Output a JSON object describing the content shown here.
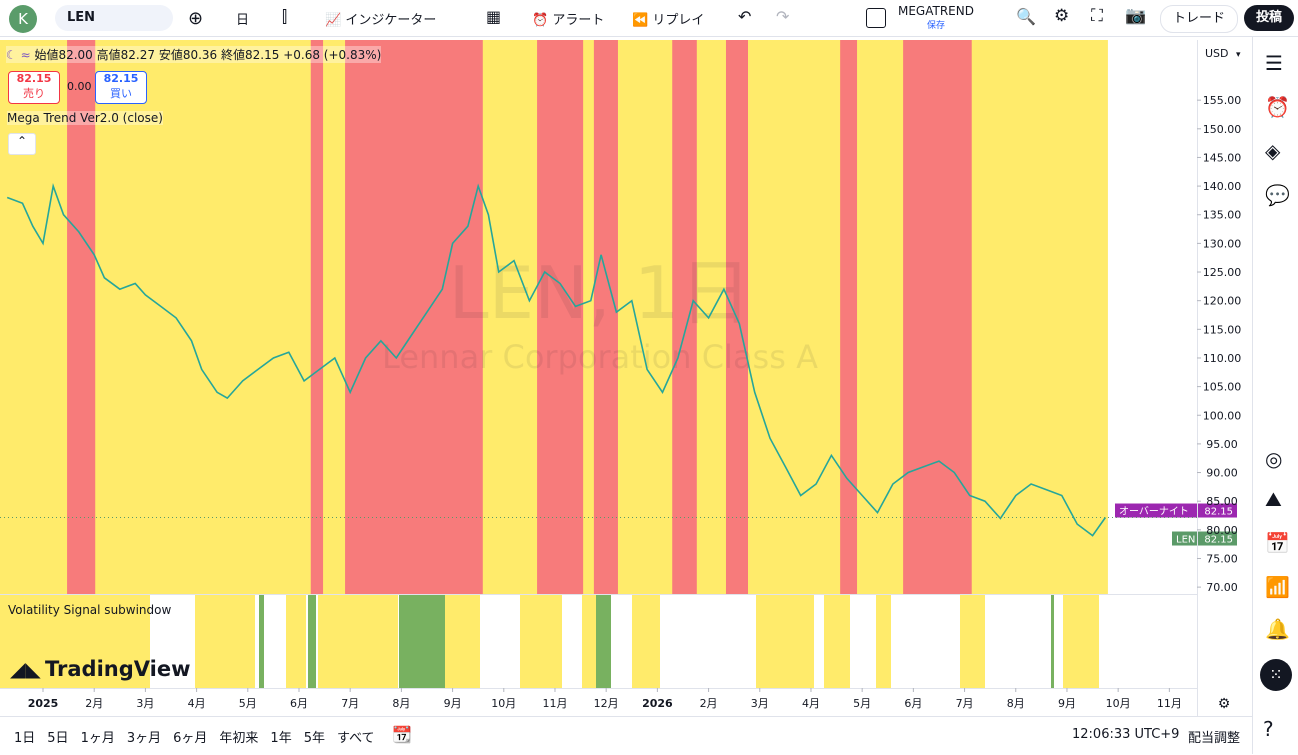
{
  "toolbar": {
    "avatar": "K",
    "symbol": "LEN",
    "interval": "日",
    "indicators": "インジケーター",
    "alert": "アラート",
    "replay": "リプレイ",
    "layout_name": "MEGATREND",
    "layout_status": "保存",
    "trade": "トレード",
    "publish": "投稿"
  },
  "legend": {
    "open": "始値82.00",
    "high": "高値82.27",
    "low": "安値80.36",
    "close": "終値82.15",
    "change": "+0.68 (+0.83%)",
    "sell_price": "82.15",
    "sell": "売り",
    "spread": "0.00",
    "buy_price": "82.15",
    "buy": "買い",
    "indicator": "Mega Trend Ver2.0 (close)",
    "subwindow": "Volatility Signal subwindow"
  },
  "watermark": {
    "symbol": "LEN, 1日",
    "name": "Lennar Corporation Class A"
  },
  "logo": "TradingView",
  "chart_data": {
    "type": "line",
    "currency": "USD",
    "color": "#26a69a",
    "x": [
      -0.7,
      -0.4,
      -0.2,
      0,
      0.2,
      0.4,
      0.7,
      1.0,
      1.2,
      1.5,
      1.8,
      2.0,
      2.3,
      2.6,
      2.9,
      3.1,
      3.4,
      3.6,
      3.9,
      4.2,
      4.5,
      4.8,
      5.1,
      5.4,
      5.7,
      6.0,
      6.3,
      6.6,
      6.9,
      7.2,
      7.5,
      7.8,
      8.0,
      8.3,
      8.5,
      8.7,
      8.9,
      9.2,
      9.5,
      9.8,
      10.1,
      10.4,
      10.7,
      10.9,
      11.2,
      11.5,
      11.8,
      12.1,
      12.4,
      12.7,
      13.0,
      13.3,
      13.6,
      13.9,
      14.2,
      14.5,
      14.8,
      15.1,
      15.4,
      15.7,
      16.0,
      16.3,
      16.6,
      16.9,
      17.2,
      17.5,
      17.8,
      18.1,
      18.4,
      18.7,
      19.0,
      19.3,
      19.6,
      19.9,
      20.2,
      20.5,
      20.75
    ],
    "values": [
      138,
      137,
      133,
      130,
      140,
      135,
      132,
      128,
      124,
      122,
      123,
      121,
      119,
      117,
      113,
      108,
      104,
      103,
      106,
      108,
      110,
      111,
      106,
      108,
      110,
      104,
      110,
      113,
      110,
      114,
      118,
      122,
      130,
      133,
      140,
      135,
      125,
      127,
      120,
      125,
      123,
      119,
      120,
      128,
      118,
      120,
      108,
      104,
      110,
      120,
      117,
      122,
      116,
      104,
      96,
      91,
      86,
      88,
      93,
      89,
      86,
      83,
      88,
      90,
      91,
      92,
      90,
      86,
      85,
      82,
      86,
      88,
      87,
      86,
      81,
      79,
      82.15
    ],
    "trend_zones": [
      [
        0.47,
        1.02
      ],
      [
        5.23,
        5.47
      ],
      [
        5.9,
        8.59
      ],
      [
        9.65,
        10.55
      ],
      [
        10.76,
        11.23
      ],
      [
        12.29,
        12.77
      ],
      [
        13.34,
        13.77
      ],
      [
        15.57,
        15.9
      ],
      [
        16.8,
        18.14
      ]
    ],
    "signal_end": 20.8,
    "xlim": [
      -0.84,
      22.54
    ],
    "xticks": [
      {
        "value": 0,
        "label": "2025"
      },
      {
        "value": 1,
        "label": "2月"
      },
      {
        "value": 2,
        "label": "3月"
      },
      {
        "value": 3,
        "label": "4月"
      },
      {
        "value": 4,
        "label": "5月"
      },
      {
        "value": 5,
        "label": "6月"
      },
      {
        "value": 6,
        "label": "7月"
      },
      {
        "value": 7,
        "label": "8月"
      },
      {
        "value": 8,
        "label": "9月"
      },
      {
        "value": 9,
        "label": "10月"
      },
      {
        "value": 10,
        "label": "11月"
      },
      {
        "value": 11,
        "label": "12月"
      },
      {
        "value": 12,
        "label": "2026"
      },
      {
        "value": 13,
        "label": "2月"
      },
      {
        "value": 14,
        "label": "3月"
      },
      {
        "value": 15,
        "label": "4月"
      },
      {
        "value": 16,
        "label": "5月"
      },
      {
        "value": 17,
        "label": "6月"
      },
      {
        "value": 18,
        "label": "7月"
      },
      {
        "value": 19,
        "label": "8月"
      },
      {
        "value": 20,
        "label": "9月"
      },
      {
        "value": 21,
        "label": "10月"
      },
      {
        "value": 22,
        "label": "11月"
      }
    ],
    "ylim": [
      68.8,
      165.5
    ],
    "yticks": [
      {
        "value": 70,
        "label": "70.00"
      },
      {
        "value": 75,
        "label": "75.00"
      },
      {
        "value": 80,
        "label": "80.00"
      },
      {
        "value": 85,
        "label": "85.00"
      },
      {
        "value": 90,
        "label": "90.00"
      },
      {
        "value": 95,
        "label": "95.00"
      },
      {
        "value": 100,
        "label": "100.00"
      },
      {
        "value": 105,
        "label": "105.00"
      },
      {
        "value": 110,
        "label": "110.00"
      },
      {
        "value": 115,
        "label": "115.00"
      },
      {
        "value": 120,
        "label": "120.00"
      },
      {
        "value": 125,
        "label": "125.00"
      },
      {
        "value": 130,
        "label": "130.00"
      },
      {
        "value": 135,
        "label": "135.00"
      },
      {
        "value": 140,
        "label": "140.00"
      },
      {
        "value": 145,
        "label": "145.00"
      },
      {
        "value": 150,
        "label": "150.00"
      },
      {
        "value": 155,
        "label": "155.00"
      }
    ],
    "price_labels": [
      {
        "name": "オーバーナイト",
        "value": 82.15,
        "label": "82.15",
        "color": "#9c27b0"
      },
      {
        "name": "LEN",
        "value": 82.15,
        "label": "82.15",
        "color": "#5b9a68"
      }
    ]
  },
  "bottom_bar": {
    "ranges": [
      "1日",
      "5日",
      "1ヶ月",
      "3ヶ月",
      "6ヶ月",
      "年初来",
      "1年",
      "5年",
      "すべて"
    ],
    "time": "12:06:33 UTC+9",
    "adjust": "配当調整"
  }
}
